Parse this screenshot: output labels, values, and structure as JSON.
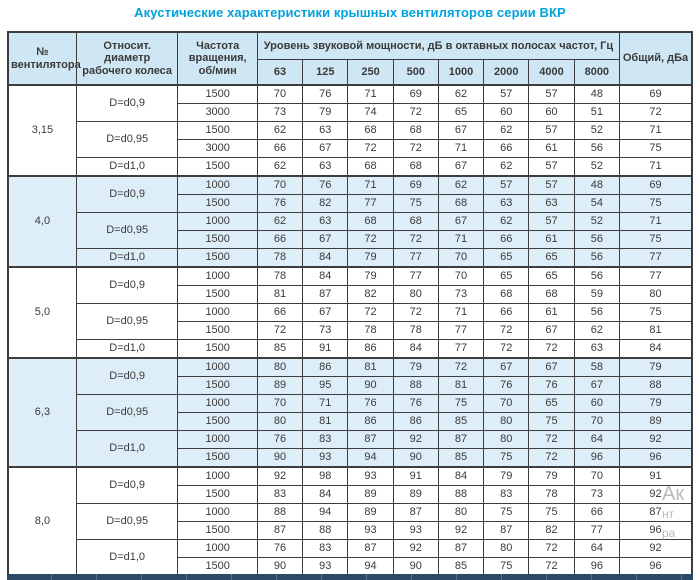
{
  "title": "Акустические характеристики крышных вентиляторов серии ВКР",
  "table": {
    "headers": {
      "fan_number": "№ вентилятора",
      "diameter": "Относит. диаметр рабочего колеса",
      "speed": "Частота вращения, об/мин",
      "spl_group": "Уровень звуковой мощности, дБ в октавных полосах частот, Гц",
      "frequencies": [
        "63",
        "125",
        "250",
        "500",
        "1000",
        "2000",
        "4000",
        "8000"
      ],
      "total": "Общий, дБа"
    },
    "groups": [
      {
        "fan": "3,15",
        "shaded": false,
        "subgroups": [
          {
            "diameter": "D=d0,9",
            "rows": [
              {
                "speed": "1500",
                "levels": [
                  70,
                  76,
                  71,
                  69,
                  62,
                  57,
                  57,
                  48
                ],
                "total": 69
              },
              {
                "speed": "3000",
                "levels": [
                  73,
                  79,
                  74,
                  72,
                  65,
                  60,
                  60,
                  51
                ],
                "total": 72
              }
            ]
          },
          {
            "diameter": "D=d0,95",
            "rows": [
              {
                "speed": "1500",
                "levels": [
                  62,
                  63,
                  68,
                  68,
                  67,
                  62,
                  57,
                  52
                ],
                "total": 71
              },
              {
                "speed": "3000",
                "levels": [
                  66,
                  67,
                  72,
                  72,
                  71,
                  66,
                  61,
                  56
                ],
                "total": 75
              }
            ]
          },
          {
            "diameter": "D=d1,0",
            "rows": [
              {
                "speed": "1500",
                "levels": [
                  62,
                  63,
                  68,
                  68,
                  67,
                  62,
                  57,
                  52
                ],
                "total": 71
              }
            ]
          }
        ]
      },
      {
        "fan": "4,0",
        "shaded": true,
        "subgroups": [
          {
            "diameter": "D=d0,9",
            "rows": [
              {
                "speed": "1000",
                "levels": [
                  70,
                  76,
                  71,
                  69,
                  62,
                  57,
                  57,
                  48
                ],
                "total": 69
              },
              {
                "speed": "1500",
                "levels": [
                  76,
                  82,
                  77,
                  75,
                  68,
                  63,
                  63,
                  54
                ],
                "total": 75
              }
            ]
          },
          {
            "diameter": "D=d0,95",
            "rows": [
              {
                "speed": "1000",
                "levels": [
                  62,
                  63,
                  68,
                  68,
                  67,
                  62,
                  57,
                  52
                ],
                "total": 71
              },
              {
                "speed": "1500",
                "levels": [
                  66,
                  67,
                  72,
                  72,
                  71,
                  66,
                  61,
                  56
                ],
                "total": 75
              }
            ]
          },
          {
            "diameter": "D=d1,0",
            "rows": [
              {
                "speed": "1500",
                "levels": [
                  78,
                  84,
                  79,
                  77,
                  70,
                  65,
                  65,
                  56
                ],
                "total": 77
              }
            ]
          }
        ]
      },
      {
        "fan": "5,0",
        "shaded": false,
        "subgroups": [
          {
            "diameter": "D=d0,9",
            "rows": [
              {
                "speed": "1000",
                "levels": [
                  78,
                  84,
                  79,
                  77,
                  70,
                  65,
                  65,
                  56
                ],
                "total": 77
              },
              {
                "speed": "1500",
                "levels": [
                  81,
                  87,
                  82,
                  80,
                  73,
                  68,
                  68,
                  59
                ],
                "total": 80
              }
            ]
          },
          {
            "diameter": "D=d0,95",
            "rows": [
              {
                "speed": "1000",
                "levels": [
                  66,
                  67,
                  72,
                  72,
                  71,
                  66,
                  61,
                  56
                ],
                "total": 75
              },
              {
                "speed": "1500",
                "levels": [
                  72,
                  73,
                  78,
                  78,
                  77,
                  72,
                  67,
                  62
                ],
                "total": 81
              }
            ]
          },
          {
            "diameter": "D=d1,0",
            "rows": [
              {
                "speed": "1500",
                "levels": [
                  85,
                  91,
                  86,
                  84,
                  77,
                  72,
                  72,
                  63
                ],
                "total": 84
              }
            ]
          }
        ]
      },
      {
        "fan": "6,3",
        "shaded": true,
        "subgroups": [
          {
            "diameter": "D=d0,9",
            "rows": [
              {
                "speed": "1000",
                "levels": [
                  80,
                  86,
                  81,
                  79,
                  72,
                  67,
                  67,
                  58
                ],
                "total": 79
              },
              {
                "speed": "1500",
                "levels": [
                  89,
                  95,
                  90,
                  88,
                  81,
                  76,
                  76,
                  67
                ],
                "total": 88
              }
            ]
          },
          {
            "diameter": "D=d0,95",
            "rows": [
              {
                "speed": "1000",
                "levels": [
                  70,
                  71,
                  76,
                  76,
                  75,
                  70,
                  65,
                  60
                ],
                "total": 79
              },
              {
                "speed": "1500",
                "levels": [
                  80,
                  81,
                  86,
                  86,
                  85,
                  80,
                  75,
                  70
                ],
                "total": 89
              }
            ]
          },
          {
            "diameter": "D=d1,0",
            "rows": [
              {
                "speed": "1000",
                "levels": [
                  76,
                  83,
                  87,
                  92,
                  87,
                  80,
                  72,
                  64
                ],
                "total": 92
              },
              {
                "speed": "1500",
                "levels": [
                  90,
                  93,
                  94,
                  90,
                  85,
                  75,
                  72,
                  96
                ],
                "total": 96
              }
            ]
          }
        ]
      },
      {
        "fan": "8,0",
        "shaded": false,
        "subgroups": [
          {
            "diameter": "D=d0,9",
            "rows": [
              {
                "speed": "1000",
                "levels": [
                  92,
                  98,
                  93,
                  91,
                  84,
                  79,
                  79,
                  70
                ],
                "total": 91
              },
              {
                "speed": "1500",
                "levels": [
                  83,
                  84,
                  89,
                  89,
                  88,
                  83,
                  78,
                  73
                ],
                "total": 92
              }
            ]
          },
          {
            "diameter": "D=d0,95",
            "rows": [
              {
                "speed": "1000",
                "levels": [
                  88,
                  94,
                  89,
                  87,
                  80,
                  75,
                  75,
                  66
                ],
                "total": 87
              },
              {
                "speed": "1500",
                "levels": [
                  87,
                  88,
                  93,
                  93,
                  92,
                  87,
                  82,
                  77
                ],
                "total": 96
              }
            ]
          },
          {
            "diameter": "D=d1,0",
            "rows": [
              {
                "speed": "1000",
                "levels": [
                  76,
                  83,
                  87,
                  92,
                  87,
                  80,
                  72,
                  64
                ],
                "total": 92
              },
              {
                "speed": "1500",
                "levels": [
                  90,
                  93,
                  94,
                  90,
                  85,
                  75,
                  72,
                  96
                ],
                "total": 96
              }
            ]
          }
        ]
      }
    ]
  },
  "watermark": {
    "fragments": [
      "Ак",
      "нт",
      "ра"
    ]
  },
  "colors": {
    "title": "#00a3dd",
    "header_bg": "#cfe7f4",
    "shaded_row_bg": "#ddeef8",
    "border": "#3d3d3d",
    "text": "#3a3a3a",
    "bottom_bar": "#2c4a68",
    "watermark": "#b6bcc2"
  }
}
